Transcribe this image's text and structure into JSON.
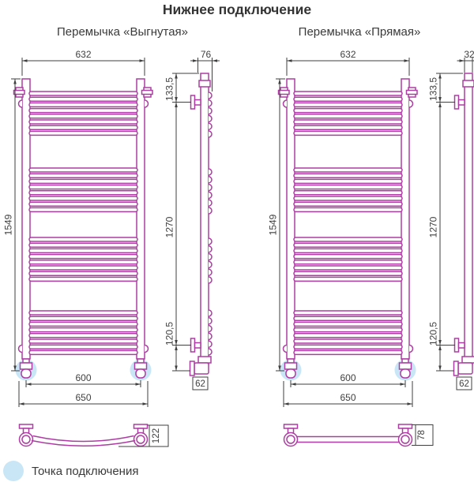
{
  "title": "Нижнее подключение",
  "variants": [
    {
      "subtitle": "Перемычка «Выгнутая»",
      "front": {
        "width": "632",
        "height": "1549",
        "conn_spacing": "600",
        "total_width": "650"
      },
      "side": {
        "depth": "76",
        "top_offset": "133,5",
        "bracket_span": "1270",
        "bottom_offset": "120,5",
        "outlet": "62"
      },
      "jumper": {
        "depth": "122"
      }
    },
    {
      "subtitle": "Перемычка «Прямая»",
      "front": {
        "width": "632",
        "height": "1549",
        "conn_spacing": "600",
        "total_width": "650"
      },
      "side": {
        "depth": "32",
        "top_offset": "133,5",
        "bracket_span": "1270",
        "bottom_offset": "120,5",
        "outlet": "62"
      },
      "jumper": {
        "depth": "78"
      }
    }
  ],
  "legend": {
    "label": "Точка подключения"
  },
  "colors": {
    "product": "#ad3da3",
    "dimension": "#3f3f3f",
    "highlight": "#c9e6f7"
  }
}
